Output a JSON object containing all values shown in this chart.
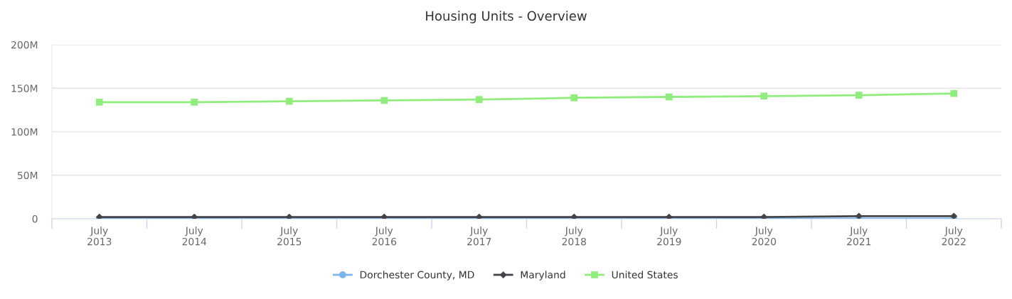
{
  "chart_data": {
    "type": "line",
    "title": "Housing Units - Overview",
    "categories": [
      "July\n2013",
      "July\n2014",
      "July\n2015",
      "July\n2016",
      "July\n2017",
      "July\n2018",
      "July\n2019",
      "July\n2020",
      "July\n2021",
      "July\n2022"
    ],
    "series": [
      {
        "name": "Dorchester County, MD",
        "color": "#7cb5ec",
        "marker": "circle",
        "values": [
          0,
          0,
          0,
          0,
          0,
          0,
          0,
          0,
          0,
          0
        ]
      },
      {
        "name": "Maryland",
        "color": "#434348",
        "marker": "diamond",
        "values": [
          2,
          2,
          2,
          2,
          2,
          2,
          2,
          2,
          3,
          3
        ]
      },
      {
        "name": "United States",
        "color": "#90ed7d",
        "marker": "square",
        "values": [
          134,
          134,
          135,
          136,
          137,
          139,
          140,
          141,
          142,
          144
        ]
      }
    ],
    "ylim": [
      0,
      200
    ],
    "yticks": [
      0,
      {
        "value": 50,
        "label": "50M"
      },
      {
        "value": 100,
        "label": "100M"
      },
      {
        "value": 150,
        "label": "150M"
      },
      {
        "value": 200,
        "label": "200M"
      }
    ],
    "grid": "y",
    "legend": "bottom",
    "line_style": "solid"
  }
}
